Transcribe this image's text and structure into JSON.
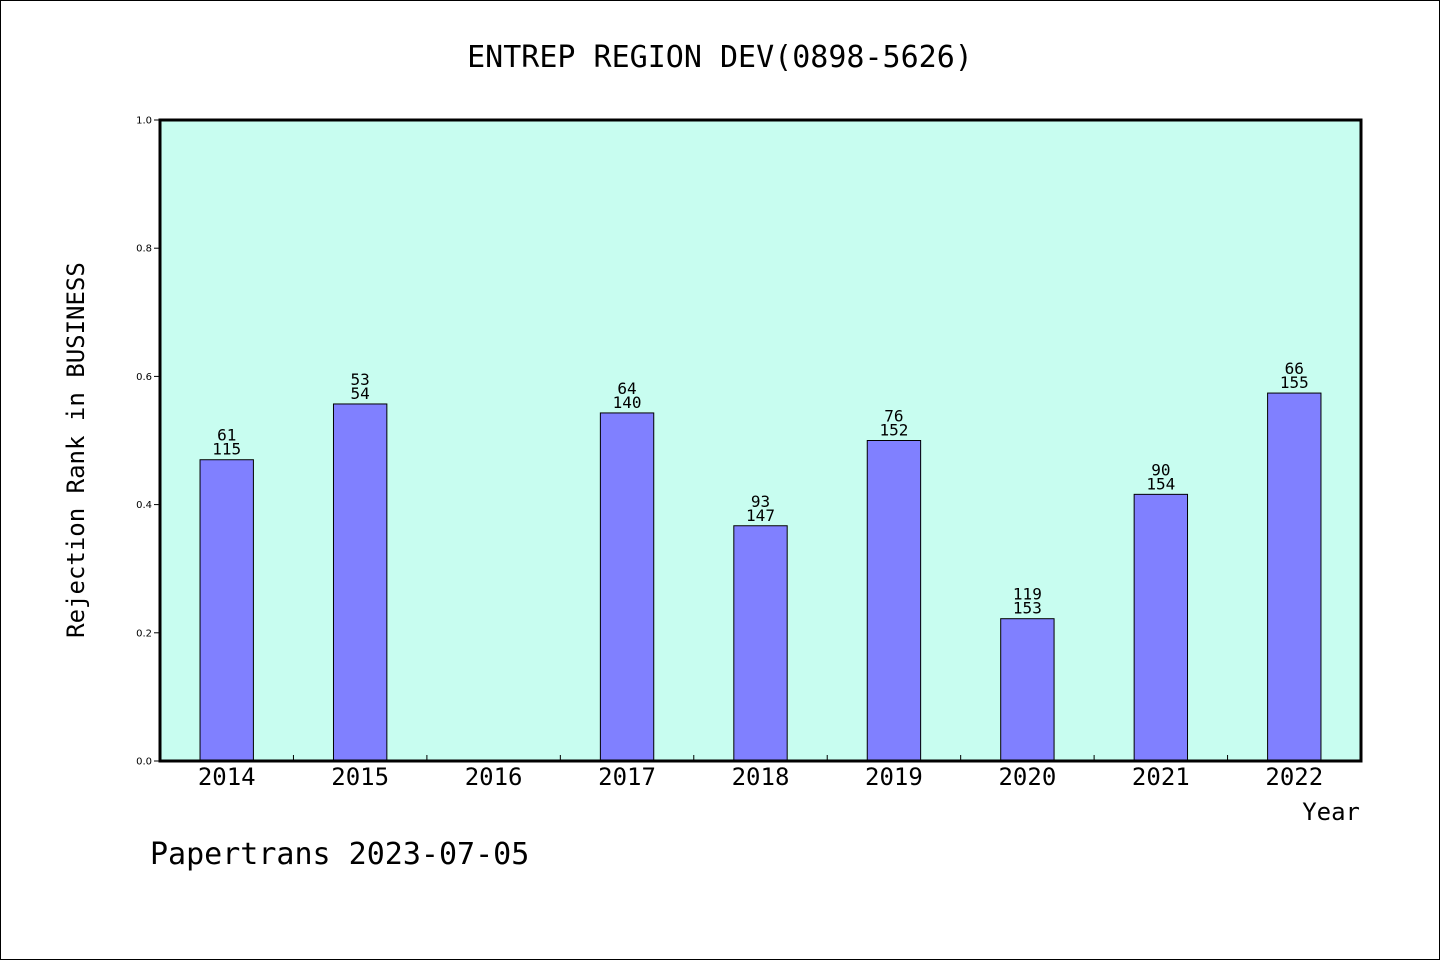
{
  "chart_data": {
    "type": "bar",
    "title": "ENTREP REGION DEV(0898-5626)",
    "xlabel": "Year",
    "ylabel": "Rejection Rank in BUSINESS",
    "ylim": [
      0.0,
      1.0
    ],
    "yticks": [
      "0.0",
      "0.2",
      "0.4",
      "0.6",
      "0.8",
      "1.0"
    ],
    "categories": [
      "2014",
      "2015",
      "2016",
      "2017",
      "2018",
      "2019",
      "2020",
      "2021",
      "2022"
    ],
    "values": [
      0.47,
      0.557,
      null,
      0.543,
      0.367,
      0.5,
      0.222,
      0.416,
      0.574
    ],
    "labels_top": [
      "61",
      "53",
      "",
      "64",
      "93",
      "76",
      "119",
      "90",
      "66"
    ],
    "labels_bottom": [
      "115",
      "54",
      "",
      "140",
      "147",
      "152",
      "153",
      "154",
      "155"
    ],
    "grid": false,
    "colors": {
      "plot_bg": "#c8fdf0",
      "bar": "#8080ff",
      "bar_edge": "#000000"
    }
  },
  "footer": "Papertrans 2023-07-05"
}
